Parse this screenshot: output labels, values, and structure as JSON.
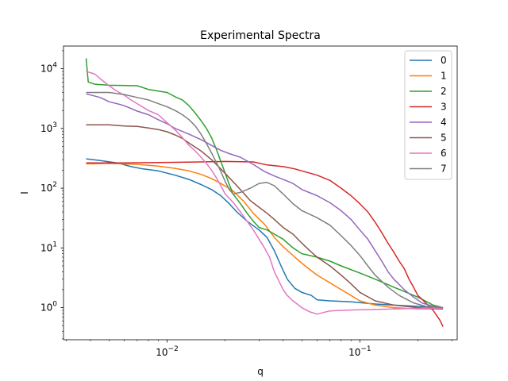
{
  "chart_data": {
    "type": "line",
    "title": "Experimental Spectra",
    "xlabel": "q",
    "ylabel": "I",
    "xscale": "log",
    "yscale": "log",
    "xlim": [
      0.0029,
      0.32
    ],
    "ylim": [
      0.29,
      24000
    ],
    "xticks": [
      {
        "value": 0.01,
        "base": "10",
        "exp": "−2"
      },
      {
        "value": 0.1,
        "base": "10",
        "exp": "−1"
      }
    ],
    "yticks": [
      {
        "value": 1,
        "base": "10",
        "exp": "0"
      },
      {
        "value": 10,
        "base": "10",
        "exp": "1"
      },
      {
        "value": 100,
        "base": "10",
        "exp": "2"
      },
      {
        "value": 1000,
        "base": "10",
        "exp": "3"
      },
      {
        "value": 10000,
        "base": "10",
        "exp": "4"
      }
    ],
    "grid": false,
    "legend": "top-right",
    "series": [
      {
        "name": "0",
        "color": "#1f77b4",
        "points": [
          [
            0.0038,
            310
          ],
          [
            0.0045,
            290
          ],
          [
            0.0055,
            265
          ],
          [
            0.0065,
            230
          ],
          [
            0.0075,
            210
          ],
          [
            0.009,
            195
          ],
          [
            0.011,
            165
          ],
          [
            0.013,
            140
          ],
          [
            0.015,
            115
          ],
          [
            0.017,
            95
          ],
          [
            0.019,
            75
          ],
          [
            0.021,
            55
          ],
          [
            0.023,
            40
          ],
          [
            0.026,
            28
          ],
          [
            0.03,
            20
          ],
          [
            0.033,
            15
          ],
          [
            0.036,
            9
          ],
          [
            0.039,
            5
          ],
          [
            0.042,
            3
          ],
          [
            0.046,
            2.1
          ],
          [
            0.05,
            1.8
          ],
          [
            0.056,
            1.6
          ],
          [
            0.06,
            1.35
          ],
          [
            0.07,
            1.3
          ],
          [
            0.09,
            1.25
          ],
          [
            0.12,
            1.15
          ],
          [
            0.15,
            1.1
          ],
          [
            0.2,
            1.05
          ],
          [
            0.27,
            1.0
          ]
        ]
      },
      {
        "name": "1",
        "color": "#ff7f0e",
        "points": [
          [
            0.0038,
            255
          ],
          [
            0.005,
            260
          ],
          [
            0.007,
            250
          ],
          [
            0.009,
            235
          ],
          [
            0.011,
            215
          ],
          [
            0.013,
            195
          ],
          [
            0.015,
            170
          ],
          [
            0.017,
            145
          ],
          [
            0.019,
            120
          ],
          [
            0.022,
            90
          ],
          [
            0.025,
            60
          ],
          [
            0.028,
            38
          ],
          [
            0.032,
            25
          ],
          [
            0.036,
            15
          ],
          [
            0.04,
            10.5
          ],
          [
            0.046,
            7
          ],
          [
            0.052,
            5
          ],
          [
            0.06,
            3.5
          ],
          [
            0.07,
            2.6
          ],
          [
            0.08,
            2.0
          ],
          [
            0.09,
            1.6
          ],
          [
            0.1,
            1.3
          ],
          [
            0.12,
            1.1
          ],
          [
            0.15,
            1.0
          ],
          [
            0.2,
            0.95
          ],
          [
            0.27,
            0.95
          ]
        ]
      },
      {
        "name": "2",
        "color": "#2ca02c",
        "points": [
          [
            0.0038,
            15000
          ],
          [
            0.0039,
            6000
          ],
          [
            0.0042,
            5500
          ],
          [
            0.005,
            5300
          ],
          [
            0.007,
            5200
          ],
          [
            0.008,
            4500
          ],
          [
            0.01,
            4000
          ],
          [
            0.011,
            3400
          ],
          [
            0.012,
            3000
          ],
          [
            0.013,
            2400
          ],
          [
            0.014,
            1800
          ],
          [
            0.015,
            1350
          ],
          [
            0.016,
            1000
          ],
          [
            0.017,
            700
          ],
          [
            0.018,
            450
          ],
          [
            0.019,
            280
          ],
          [
            0.02,
            180
          ],
          [
            0.021,
            115
          ],
          [
            0.022,
            80
          ],
          [
            0.024,
            55
          ],
          [
            0.026,
            38
          ],
          [
            0.028,
            28
          ],
          [
            0.03,
            22
          ],
          [
            0.033,
            20
          ],
          [
            0.036,
            17
          ],
          [
            0.04,
            14
          ],
          [
            0.045,
            10
          ],
          [
            0.05,
            8
          ],
          [
            0.06,
            7
          ],
          [
            0.07,
            6
          ],
          [
            0.08,
            5
          ],
          [
            0.1,
            3.8
          ],
          [
            0.12,
            3
          ],
          [
            0.15,
            2.2
          ],
          [
            0.2,
            1.5
          ],
          [
            0.24,
            1.1
          ],
          [
            0.27,
            1.0
          ]
        ]
      },
      {
        "name": "3",
        "color": "#d62728",
        "points": [
          [
            0.0038,
            265
          ],
          [
            0.006,
            265
          ],
          [
            0.01,
            270
          ],
          [
            0.015,
            275
          ],
          [
            0.02,
            280
          ],
          [
            0.028,
            275
          ],
          [
            0.033,
            245
          ],
          [
            0.04,
            230
          ],
          [
            0.046,
            210
          ],
          [
            0.05,
            195
          ],
          [
            0.06,
            165
          ],
          [
            0.07,
            135
          ],
          [
            0.08,
            100
          ],
          [
            0.09,
            75
          ],
          [
            0.1,
            55
          ],
          [
            0.11,
            40
          ],
          [
            0.12,
            27
          ],
          [
            0.13,
            18
          ],
          [
            0.14,
            12
          ],
          [
            0.15,
            8.5
          ],
          [
            0.16,
            6
          ],
          [
            0.17,
            4.5
          ],
          [
            0.18,
            3
          ],
          [
            0.19,
            2.2
          ],
          [
            0.2,
            1.6
          ],
          [
            0.22,
            1.2
          ],
          [
            0.24,
            0.9
          ],
          [
            0.26,
            0.62
          ],
          [
            0.27,
            0.48
          ]
        ]
      },
      {
        "name": "4",
        "color": "#9467bd",
        "points": [
          [
            0.0038,
            3800
          ],
          [
            0.0045,
            3300
          ],
          [
            0.005,
            2800
          ],
          [
            0.0055,
            2600
          ],
          [
            0.006,
            2400
          ],
          [
            0.007,
            1950
          ],
          [
            0.008,
            1700
          ],
          [
            0.009,
            1400
          ],
          [
            0.01,
            1200
          ],
          [
            0.011,
            1000
          ],
          [
            0.013,
            800
          ],
          [
            0.015,
            650
          ],
          [
            0.017,
            520
          ],
          [
            0.019,
            430
          ],
          [
            0.021,
            380
          ],
          [
            0.024,
            330
          ],
          [
            0.028,
            250
          ],
          [
            0.032,
            190
          ],
          [
            0.036,
            160
          ],
          [
            0.04,
            140
          ],
          [
            0.045,
            120
          ],
          [
            0.05,
            95
          ],
          [
            0.06,
            75
          ],
          [
            0.07,
            57
          ],
          [
            0.08,
            42
          ],
          [
            0.09,
            30
          ],
          [
            0.1,
            20
          ],
          [
            0.11,
            14
          ],
          [
            0.12,
            9
          ],
          [
            0.13,
            6
          ],
          [
            0.14,
            4
          ],
          [
            0.15,
            3
          ],
          [
            0.17,
            2
          ],
          [
            0.19,
            1.5
          ],
          [
            0.21,
            1.2
          ],
          [
            0.24,
            1.05
          ],
          [
            0.27,
            1.0
          ]
        ]
      },
      {
        "name": "5",
        "color": "#8c564b",
        "points": [
          [
            0.0038,
            1150
          ],
          [
            0.005,
            1150
          ],
          [
            0.006,
            1100
          ],
          [
            0.007,
            1080
          ],
          [
            0.008,
            1020
          ],
          [
            0.009,
            960
          ],
          [
            0.01,
            880
          ],
          [
            0.011,
            780
          ],
          [
            0.012,
            680
          ],
          [
            0.013,
            570
          ],
          [
            0.015,
            420
          ],
          [
            0.017,
            300
          ],
          [
            0.019,
            210
          ],
          [
            0.021,
            150
          ],
          [
            0.023,
            110
          ],
          [
            0.025,
            82
          ],
          [
            0.027,
            62
          ],
          [
            0.03,
            48
          ],
          [
            0.033,
            38
          ],
          [
            0.036,
            30
          ],
          [
            0.04,
            22
          ],
          [
            0.045,
            17
          ],
          [
            0.05,
            12
          ],
          [
            0.055,
            9
          ],
          [
            0.06,
            7
          ],
          [
            0.07,
            5
          ],
          [
            0.08,
            3.5
          ],
          [
            0.09,
            2.5
          ],
          [
            0.1,
            1.8
          ],
          [
            0.12,
            1.3
          ],
          [
            0.15,
            1.1
          ],
          [
            0.2,
            1.0
          ],
          [
            0.27,
            0.95
          ]
        ]
      },
      {
        "name": "6",
        "color": "#e377c2",
        "points": [
          [
            0.0038,
            9000
          ],
          [
            0.0042,
            8200
          ],
          [
            0.0045,
            6800
          ],
          [
            0.005,
            5200
          ],
          [
            0.0055,
            4200
          ],
          [
            0.006,
            3600
          ],
          [
            0.0065,
            3000
          ],
          [
            0.007,
            2600
          ],
          [
            0.008,
            2000
          ],
          [
            0.009,
            1700
          ],
          [
            0.01,
            1250
          ],
          [
            0.011,
            950
          ],
          [
            0.012,
            700
          ],
          [
            0.013,
            520
          ],
          [
            0.014,
            420
          ],
          [
            0.015,
            330
          ],
          [
            0.016,
            260
          ],
          [
            0.017,
            200
          ],
          [
            0.018,
            150
          ],
          [
            0.019,
            110
          ],
          [
            0.02,
            80
          ],
          [
            0.022,
            58
          ],
          [
            0.024,
            40
          ],
          [
            0.026,
            28
          ],
          [
            0.028,
            20
          ],
          [
            0.03,
            14
          ],
          [
            0.032,
            10
          ],
          [
            0.034,
            7
          ],
          [
            0.036,
            4
          ],
          [
            0.038,
            2.8
          ],
          [
            0.04,
            2
          ],
          [
            0.042,
            1.6
          ],
          [
            0.045,
            1.3
          ],
          [
            0.05,
            1.0
          ],
          [
            0.055,
            0.85
          ],
          [
            0.06,
            0.78
          ],
          [
            0.07,
            0.88
          ],
          [
            0.08,
            0.9
          ],
          [
            0.1,
            0.92
          ],
          [
            0.15,
            0.95
          ],
          [
            0.2,
            0.97
          ],
          [
            0.27,
            0.98
          ]
        ]
      },
      {
        "name": "7",
        "color": "#7f7f7f",
        "points": [
          [
            0.0038,
            4000
          ],
          [
            0.005,
            4000
          ],
          [
            0.006,
            3700
          ],
          [
            0.007,
            3300
          ],
          [
            0.008,
            3000
          ],
          [
            0.009,
            2600
          ],
          [
            0.01,
            2300
          ],
          [
            0.011,
            2000
          ],
          [
            0.012,
            1700
          ],
          [
            0.013,
            1400
          ],
          [
            0.014,
            1100
          ],
          [
            0.015,
            800
          ],
          [
            0.016,
            560
          ],
          [
            0.017,
            390
          ],
          [
            0.018,
            270
          ],
          [
            0.019,
            190
          ],
          [
            0.02,
            130
          ],
          [
            0.021,
            95
          ],
          [
            0.022,
            80
          ],
          [
            0.024,
            85
          ],
          [
            0.027,
            100
          ],
          [
            0.03,
            120
          ],
          [
            0.033,
            125
          ],
          [
            0.036,
            110
          ],
          [
            0.04,
            80
          ],
          [
            0.045,
            55
          ],
          [
            0.05,
            42
          ],
          [
            0.06,
            32
          ],
          [
            0.07,
            24
          ],
          [
            0.08,
            16
          ],
          [
            0.09,
            11
          ],
          [
            0.1,
            7.5
          ],
          [
            0.11,
            5
          ],
          [
            0.12,
            3.5
          ],
          [
            0.14,
            2.2
          ],
          [
            0.16,
            1.6
          ],
          [
            0.19,
            1.2
          ],
          [
            0.22,
            1.05
          ],
          [
            0.27,
            1.0
          ]
        ]
      }
    ]
  }
}
